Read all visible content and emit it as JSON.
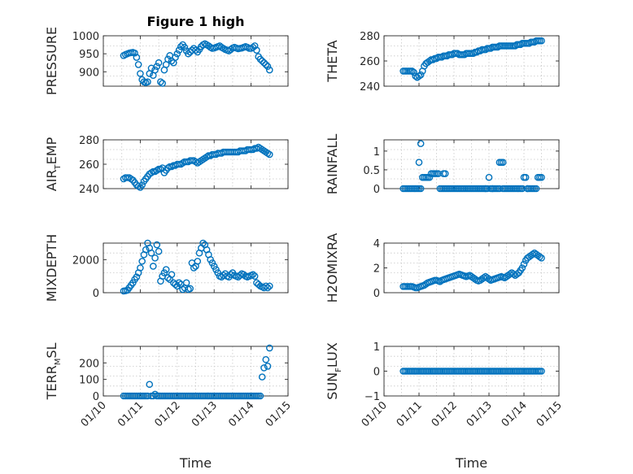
{
  "figure_title": "Figure 1 high",
  "x_label": "Time",
  "x_tick_labels": [
    "01/10",
    "01/11",
    "01/12",
    "01/13",
    "01/14",
    "01/15"
  ],
  "marker_color": "#0072BD",
  "chart_data": [
    {
      "type": "scatter",
      "title": "Figure 1 high",
      "ylabel": "PRESSURE",
      "xlabel": "",
      "xlim": [
        0,
        5
      ],
      "ylim": [
        860,
        1000
      ],
      "yticks": [
        900,
        950,
        1000
      ],
      "grid": true,
      "x": [
        0.55,
        0.6,
        0.65,
        0.7,
        0.75,
        0.8,
        0.85,
        0.9,
        0.95,
        1.0,
        1.05,
        1.1,
        1.15,
        1.2,
        1.25,
        1.3,
        1.35,
        1.4,
        1.45,
        1.5,
        1.55,
        1.6,
        1.65,
        1.7,
        1.75,
        1.8,
        1.85,
        1.9,
        1.95,
        2.0,
        2.05,
        2.1,
        2.15,
        2.2,
        2.25,
        2.3,
        2.35,
        2.4,
        2.45,
        2.5,
        2.55,
        2.6,
        2.65,
        2.7,
        2.75,
        2.8,
        2.85,
        2.9,
        2.95,
        3.0,
        3.05,
        3.1,
        3.15,
        3.2,
        3.25,
        3.3,
        3.35,
        3.4,
        3.45,
        3.5,
        3.55,
        3.6,
        3.65,
        3.7,
        3.75,
        3.8,
        3.85,
        3.9,
        3.95,
        4.0,
        4.05,
        4.1,
        4.15,
        4.2,
        4.25,
        4.3,
        4.35,
        4.4,
        4.45,
        4.5
      ],
      "y": [
        945,
        948,
        950,
        952,
        953,
        954,
        952,
        940,
        920,
        895,
        878,
        872,
        870,
        872,
        895,
        910,
        890,
        905,
        915,
        925,
        872,
        868,
        905,
        920,
        935,
        945,
        930,
        925,
        940,
        950,
        960,
        970,
        975,
        968,
        958,
        950,
        955,
        960,
        965,
        960,
        955,
        962,
        970,
        975,
        978,
        975,
        972,
        968,
        965,
        966,
        968,
        970,
        972,
        968,
        965,
        962,
        960,
        958,
        962,
        966,
        968,
        966,
        964,
        965,
        966,
        968,
        970,
        968,
        965,
        965,
        968,
        972,
        960,
        942,
        935,
        930,
        925,
        920,
        915,
        905
      ]
    },
    {
      "type": "scatter",
      "title": "",
      "ylabel": "THETA",
      "xlabel": "",
      "xlim": [
        0,
        5
      ],
      "ylim": [
        240,
        280
      ],
      "yticks": [
        240,
        260,
        280
      ],
      "grid": true,
      "x": [
        0.55,
        0.6,
        0.65,
        0.7,
        0.75,
        0.8,
        0.85,
        0.9,
        0.95,
        1.0,
        1.05,
        1.1,
        1.15,
        1.2,
        1.25,
        1.3,
        1.35,
        1.4,
        1.45,
        1.5,
        1.55,
        1.6,
        1.65,
        1.7,
        1.75,
        1.8,
        1.85,
        1.9,
        1.95,
        2.0,
        2.05,
        2.1,
        2.15,
        2.2,
        2.25,
        2.3,
        2.35,
        2.4,
        2.45,
        2.5,
        2.55,
        2.6,
        2.65,
        2.7,
        2.75,
        2.8,
        2.85,
        2.9,
        2.95,
        3.0,
        3.05,
        3.1,
        3.15,
        3.2,
        3.25,
        3.3,
        3.35,
        3.4,
        3.45,
        3.5,
        3.55,
        3.6,
        3.65,
        3.7,
        3.75,
        3.8,
        3.85,
        3.9,
        3.95,
        4.0,
        4.05,
        4.1,
        4.15,
        4.2,
        4.25,
        4.3,
        4.35,
        4.4,
        4.45,
        4.5
      ],
      "y": [
        252,
        252,
        252,
        252,
        252,
        252,
        251,
        248,
        247,
        248,
        249,
        252,
        256,
        258,
        259,
        260,
        261,
        261,
        262,
        262,
        263,
        263,
        263,
        264,
        264,
        264,
        265,
        265,
        265,
        266,
        266,
        266,
        265,
        265,
        265,
        265,
        266,
        266,
        266,
        266,
        266,
        267,
        267,
        268,
        268,
        269,
        269,
        269,
        270,
        270,
        270,
        271,
        271,
        271,
        271,
        272,
        272,
        272,
        272,
        272,
        272,
        272,
        272,
        272,
        272,
        273,
        273,
        273,
        274,
        274,
        274,
        274,
        274,
        275,
        275,
        275,
        276,
        276,
        276,
        276
      ]
    },
    {
      "type": "scatter",
      "title": "",
      "ylabel": "AIR_TEMP",
      "xlabel": "",
      "xlim": [
        0,
        5
      ],
      "ylim": [
        240,
        280
      ],
      "yticks": [
        240,
        260,
        280
      ],
      "grid": true,
      "x": [
        0.55,
        0.6,
        0.65,
        0.7,
        0.75,
        0.8,
        0.85,
        0.9,
        0.95,
        1.0,
        1.05,
        1.1,
        1.15,
        1.2,
        1.25,
        1.3,
        1.35,
        1.4,
        1.45,
        1.5,
        1.55,
        1.6,
        1.65,
        1.7,
        1.75,
        1.8,
        1.85,
        1.9,
        1.95,
        2.0,
        2.05,
        2.1,
        2.15,
        2.2,
        2.25,
        2.3,
        2.35,
        2.4,
        2.45,
        2.5,
        2.55,
        2.6,
        2.65,
        2.7,
        2.75,
        2.8,
        2.85,
        2.9,
        2.95,
        3.0,
        3.05,
        3.1,
        3.15,
        3.2,
        3.25,
        3.3,
        3.35,
        3.4,
        3.45,
        3.5,
        3.55,
        3.6,
        3.65,
        3.7,
        3.75,
        3.8,
        3.85,
        3.9,
        3.95,
        4.0,
        4.05,
        4.1,
        4.15,
        4.2,
        4.25,
        4.3,
        4.35,
        4.4,
        4.45,
        4.5
      ],
      "y": [
        248,
        249,
        249,
        249,
        248,
        247,
        245,
        243,
        242,
        241,
        243,
        246,
        248,
        250,
        252,
        253,
        254,
        254,
        255,
        256,
        256,
        257,
        253,
        255,
        257,
        258,
        258,
        259,
        259,
        260,
        260,
        260,
        261,
        262,
        262,
        262,
        263,
        263,
        263,
        262,
        261,
        262,
        263,
        264,
        265,
        266,
        267,
        267,
        268,
        268,
        268,
        269,
        269,
        269,
        270,
        270,
        270,
        270,
        270,
        270,
        270,
        270,
        270,
        271,
        271,
        271,
        271,
        272,
        272,
        272,
        272,
        273,
        273,
        274,
        273,
        272,
        271,
        270,
        269,
        268
      ]
    },
    {
      "type": "scatter",
      "title": "",
      "ylabel": "RAINFALL",
      "xlabel": "",
      "xlim": [
        0,
        5
      ],
      "ylim": [
        0,
        1.3
      ],
      "yticks": [
        0,
        0.5,
        1
      ],
      "grid": true,
      "x": [
        0.55,
        0.6,
        0.65,
        0.7,
        0.75,
        0.8,
        0.85,
        0.9,
        0.95,
        1.0,
        1.05,
        1.1,
        1.15,
        1.2,
        1.25,
        1.3,
        1.35,
        1.4,
        1.45,
        1.5,
        1.55,
        1.6,
        1.65,
        1.7,
        1.75,
        1.8,
        1.85,
        1.9,
        1.95,
        2.0,
        2.05,
        2.1,
        2.15,
        2.2,
        2.25,
        2.3,
        2.35,
        2.4,
        2.45,
        2.5,
        2.55,
        2.6,
        2.65,
        2.7,
        2.75,
        2.8,
        2.85,
        2.9,
        2.95,
        3.0,
        3.05,
        3.1,
        3.15,
        3.2,
        3.25,
        3.3,
        3.35,
        3.4,
        3.45,
        3.5,
        3.55,
        3.6,
        3.65,
        3.7,
        3.75,
        3.8,
        3.85,
        3.9,
        3.95,
        4.0,
        4.05,
        4.1,
        4.15,
        4.2,
        4.25,
        4.3,
        4.35,
        4.4,
        4.45,
        4.5,
        1.0,
        1.05,
        1.7,
        1.75,
        2.9,
        3.1,
        3.3,
        3.4,
        4.1
      ],
      "y": [
        0,
        0,
        0,
        0,
        0,
        0,
        0,
        0,
        0,
        0.7,
        1.2,
        0.3,
        0.3,
        0.3,
        0.3,
        0.3,
        0.4,
        0.4,
        0.4,
        0.4,
        0.4,
        0,
        0,
        0.4,
        0.4,
        0,
        0,
        0,
        0,
        0,
        0,
        0,
        0,
        0,
        0,
        0,
        0,
        0,
        0,
        0,
        0,
        0,
        0,
        0,
        0,
        0,
        0,
        0,
        0,
        0.3,
        0,
        0,
        0,
        0,
        0,
        0.7,
        0.7,
        0.7,
        0,
        0,
        0,
        0,
        0,
        0,
        0,
        0,
        0,
        0,
        0,
        0.3,
        0.3,
        0,
        0,
        0,
        0,
        0,
        0,
        0.3,
        0.3,
        0.3,
        0,
        0,
        0,
        0,
        0,
        0,
        0,
        0,
        0
      ]
    },
    {
      "type": "scatter",
      "title": "",
      "ylabel": "MIXDEPTH",
      "xlabel": "",
      "xlim": [
        0,
        5
      ],
      "ylim": [
        0,
        3000
      ],
      "yticks": [
        0,
        2000
      ],
      "grid": true,
      "x": [
        0.55,
        0.6,
        0.65,
        0.7,
        0.75,
        0.8,
        0.85,
        0.9,
        0.95,
        1.0,
        1.05,
        1.1,
        1.15,
        1.2,
        1.25,
        1.3,
        1.35,
        1.4,
        1.45,
        1.5,
        1.55,
        1.6,
        1.65,
        1.7,
        1.75,
        1.8,
        1.85,
        1.9,
        1.95,
        2.0,
        2.05,
        2.1,
        2.15,
        2.2,
        2.25,
        2.3,
        2.35,
        2.4,
        2.45,
        2.5,
        2.55,
        2.6,
        2.65,
        2.7,
        2.75,
        2.8,
        2.85,
        2.9,
        2.95,
        3.0,
        3.05,
        3.1,
        3.15,
        3.2,
        3.25,
        3.3,
        3.35,
        3.4,
        3.45,
        3.5,
        3.55,
        3.6,
        3.65,
        3.7,
        3.75,
        3.8,
        3.85,
        3.9,
        3.95,
        4.0,
        4.05,
        4.1,
        4.15,
        4.2,
        4.25,
        4.3,
        4.35,
        4.4,
        4.45,
        4.5
      ],
      "y": [
        100,
        120,
        150,
        300,
        450,
        600,
        800,
        950,
        1200,
        1500,
        1900,
        2300,
        2600,
        3000,
        2700,
        2400,
        1600,
        2100,
        2900,
        2500,
        700,
        1000,
        1200,
        1400,
        900,
        800,
        1100,
        600,
        500,
        400,
        600,
        500,
        200,
        300,
        600,
        200,
        250,
        1800,
        1500,
        1600,
        1900,
        2400,
        2700,
        3000,
        2900,
        2600,
        2300,
        2000,
        1800,
        1600,
        1400,
        1200,
        1000,
        950,
        1050,
        1150,
        1000,
        950,
        1100,
        1200,
        1050,
        1000,
        950,
        1050,
        1150,
        1100,
        1000,
        950,
        1000,
        1050,
        1100,
        1000,
        600,
        500,
        400,
        350,
        300,
        400,
        300,
        400
      ]
    },
    {
      "type": "scatter",
      "title": "",
      "ylabel": "H2OMIXRA",
      "xlabel": "",
      "xlim": [
        0,
        5
      ],
      "ylim": [
        0,
        4
      ],
      "yticks": [
        0,
        2,
        4
      ],
      "grid": true,
      "x": [
        0.55,
        0.6,
        0.65,
        0.7,
        0.75,
        0.8,
        0.85,
        0.9,
        0.95,
        1.0,
        1.05,
        1.1,
        1.15,
        1.2,
        1.25,
        1.3,
        1.35,
        1.4,
        1.45,
        1.5,
        1.55,
        1.6,
        1.65,
        1.7,
        1.75,
        1.8,
        1.85,
        1.9,
        1.95,
        2.0,
        2.05,
        2.1,
        2.15,
        2.2,
        2.25,
        2.3,
        2.35,
        2.4,
        2.45,
        2.5,
        2.55,
        2.6,
        2.65,
        2.7,
        2.75,
        2.8,
        2.85,
        2.9,
        2.95,
        3.0,
        3.05,
        3.1,
        3.15,
        3.2,
        3.25,
        3.3,
        3.35,
        3.4,
        3.45,
        3.5,
        3.55,
        3.6,
        3.65,
        3.7,
        3.75,
        3.8,
        3.85,
        3.9,
        3.95,
        4.0,
        4.05,
        4.1,
        4.15,
        4.2,
        4.25,
        4.3,
        4.35,
        4.4,
        4.45,
        4.5
      ],
      "y": [
        0.5,
        0.5,
        0.5,
        0.5,
        0.5,
        0.5,
        0.45,
        0.4,
        0.4,
        0.45,
        0.5,
        0.55,
        0.6,
        0.7,
        0.8,
        0.85,
        0.9,
        0.95,
        1.0,
        1.0,
        0.95,
        0.9,
        1.0,
        1.05,
        1.1,
        1.15,
        1.2,
        1.25,
        1.3,
        1.35,
        1.4,
        1.45,
        1.5,
        1.45,
        1.4,
        1.35,
        1.3,
        1.35,
        1.4,
        1.3,
        1.2,
        1.1,
        1.0,
        0.95,
        1.0,
        1.1,
        1.2,
        1.3,
        1.2,
        1.1,
        1.0,
        1.05,
        1.1,
        1.15,
        1.2,
        1.25,
        1.3,
        1.25,
        1.2,
        1.3,
        1.4,
        1.5,
        1.6,
        1.5,
        1.4,
        1.5,
        1.6,
        1.8,
        2.0,
        2.3,
        2.6,
        2.8,
        2.9,
        3.0,
        3.1,
        3.2,
        3.1,
        3.0,
        2.9,
        2.8
      ]
    },
    {
      "type": "scatter",
      "title": "",
      "ylabel": "TERR_MSL",
      "xlabel": "Time",
      "xlim": [
        0,
        5
      ],
      "ylim": [
        0,
        300
      ],
      "yticks": [
        0,
        100,
        200
      ],
      "grid": true,
      "x": [
        0.55,
        0.6,
        0.65,
        0.7,
        0.75,
        0.8,
        0.85,
        0.9,
        0.95,
        1.0,
        1.05,
        1.1,
        1.15,
        1.2,
        1.25,
        1.3,
        1.35,
        1.4,
        1.45,
        1.5,
        1.55,
        1.6,
        1.65,
        1.7,
        1.75,
        1.8,
        1.85,
        1.9,
        1.95,
        2.0,
        2.05,
        2.1,
        2.15,
        2.2,
        2.25,
        2.3,
        2.35,
        2.4,
        2.45,
        2.5,
        2.55,
        2.6,
        2.65,
        2.7,
        2.75,
        2.8,
        2.85,
        2.9,
        2.95,
        3.0,
        3.05,
        3.1,
        3.15,
        3.2,
        3.25,
        3.3,
        3.35,
        3.4,
        3.45,
        3.5,
        3.55,
        3.6,
        3.65,
        3.7,
        3.75,
        3.8,
        3.85,
        3.9,
        3.95,
        4.0,
        4.05,
        4.1,
        4.15,
        4.2,
        4.25,
        4.3,
        4.35,
        4.4,
        4.45,
        4.5
      ],
      "y": [
        0,
        0,
        0,
        0,
        0,
        0,
        0,
        0,
        0,
        0,
        0,
        0,
        0,
        0,
        70,
        0,
        0,
        10,
        0,
        0,
        0,
        0,
        0,
        0,
        0,
        0,
        0,
        0,
        0,
        0,
        0,
        0,
        0,
        0,
        0,
        0,
        0,
        0,
        0,
        0,
        0,
        0,
        0,
        0,
        0,
        0,
        0,
        0,
        0,
        0,
        0,
        0,
        0,
        0,
        0,
        0,
        0,
        0,
        0,
        0,
        0,
        0,
        0,
        0,
        0,
        0,
        0,
        0,
        0,
        0,
        0,
        0,
        0,
        0,
        0,
        115,
        170,
        220,
        180,
        290
      ]
    },
    {
      "type": "scatter",
      "title": "",
      "ylabel": "SUN_FLUX",
      "xlabel": "Time",
      "xlim": [
        0,
        5
      ],
      "ylim": [
        -1,
        1
      ],
      "yticks": [
        -1,
        0,
        1
      ],
      "grid": true,
      "x": [
        0.55,
        0.6,
        0.65,
        0.7,
        0.75,
        0.8,
        0.85,
        0.9,
        0.95,
        1.0,
        1.05,
        1.1,
        1.15,
        1.2,
        1.25,
        1.3,
        1.35,
        1.4,
        1.45,
        1.5,
        1.55,
        1.6,
        1.65,
        1.7,
        1.75,
        1.8,
        1.85,
        1.9,
        1.95,
        2.0,
        2.05,
        2.1,
        2.15,
        2.2,
        2.25,
        2.3,
        2.35,
        2.4,
        2.45,
        2.5,
        2.55,
        2.6,
        2.65,
        2.7,
        2.75,
        2.8,
        2.85,
        2.9,
        2.95,
        3.0,
        3.05,
        3.1,
        3.15,
        3.2,
        3.25,
        3.3,
        3.35,
        3.4,
        3.45,
        3.5,
        3.55,
        3.6,
        3.65,
        3.7,
        3.75,
        3.8,
        3.85,
        3.9,
        3.95,
        4.0,
        4.05,
        4.1,
        4.15,
        4.2,
        4.25,
        4.3,
        4.35,
        4.4,
        4.45,
        4.5
      ],
      "y": [
        0,
        0,
        0,
        0,
        0,
        0,
        0,
        0,
        0,
        0,
        0,
        0,
        0,
        0,
        0,
        0,
        0,
        0,
        0,
        0,
        0,
        0,
        0,
        0,
        0,
        0,
        0,
        0,
        0,
        0,
        0,
        0,
        0,
        0,
        0,
        0,
        0,
        0,
        0,
        0,
        0,
        0,
        0,
        0,
        0,
        0,
        0,
        0,
        0,
        0,
        0,
        0,
        0,
        0,
        0,
        0,
        0,
        0,
        0,
        0,
        0,
        0,
        0,
        0,
        0,
        0,
        0,
        0,
        0,
        0,
        0,
        0,
        0,
        0,
        0,
        0,
        0,
        0,
        0,
        0
      ]
    }
  ]
}
